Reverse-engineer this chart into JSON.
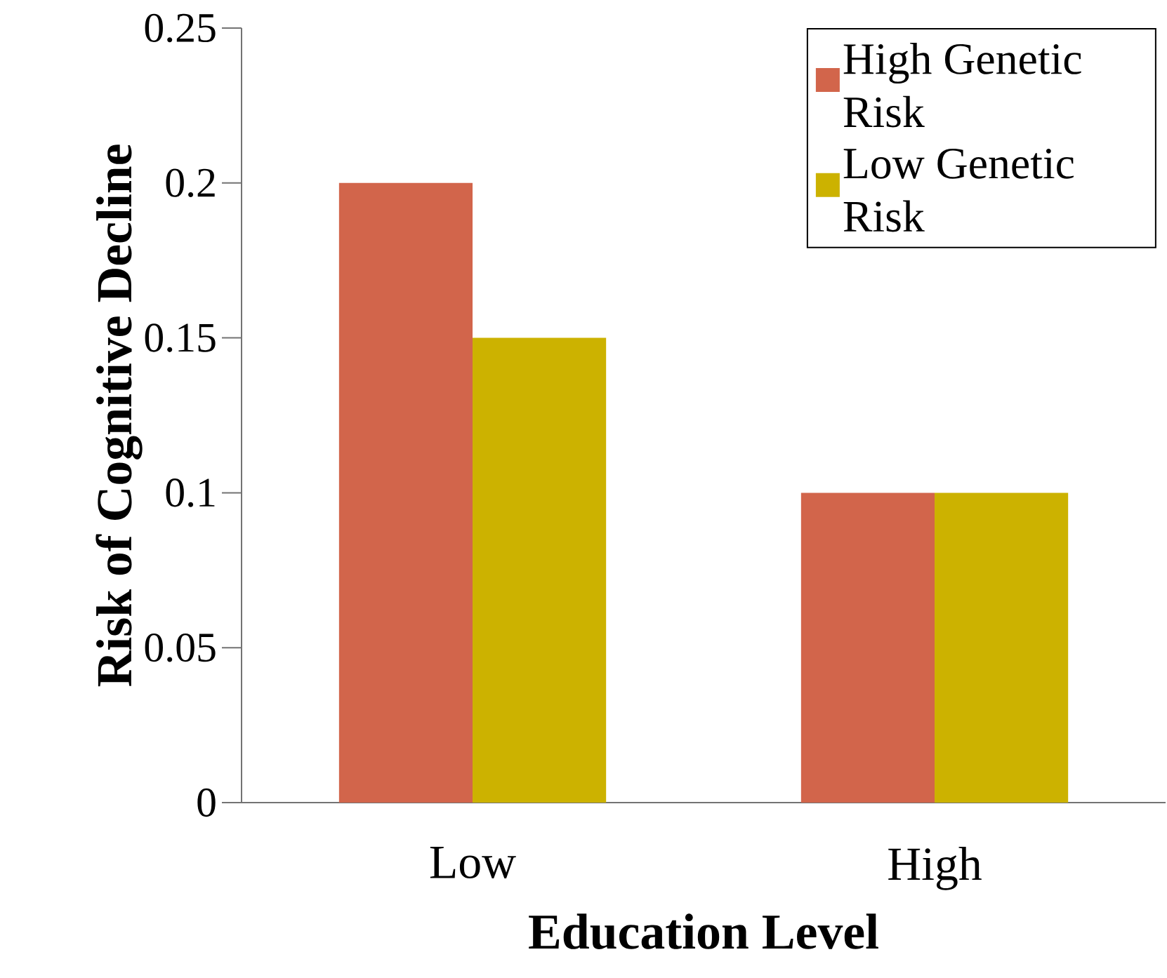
{
  "chart_data": {
    "type": "bar",
    "xlabel": "Education Level",
    "ylabel": "Risk of Cognitive Decline",
    "categories": [
      "Low",
      "High"
    ],
    "series": [
      {
        "name": "High Genetic Risk",
        "color": "#d2654b",
        "values": [
          0.2,
          0.1
        ]
      },
      {
        "name": "Low Genetic Risk",
        "color": "#ccb200",
        "values": [
          0.15,
          0.1
        ]
      }
    ],
    "ylim": [
      0,
      0.25
    ],
    "yticks": [
      0,
      0.05,
      0.1,
      0.15,
      0.2,
      0.25
    ],
    "grid": false,
    "legend": "top right"
  }
}
